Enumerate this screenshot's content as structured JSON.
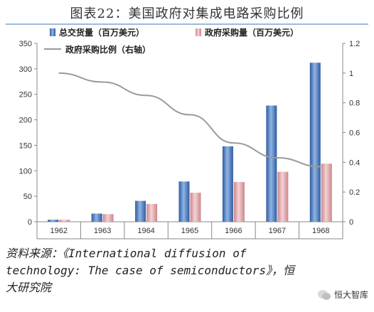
{
  "title": "图表22：美国政府对集成电路采购比例",
  "source_text": "资料来源：《International diffusion of technology: The case of semiconductors》，恒大研究院",
  "watermark": "恒大智库",
  "chart_data": {
    "type": "bar",
    "categories": [
      "1962",
      "1963",
      "1964",
      "1965",
      "1966",
      "1967",
      "1968"
    ],
    "series": [
      {
        "name": "总交货量（百万美元）",
        "axis": "left",
        "kind": "bar",
        "color": "#4f7fc4",
        "values": [
          4,
          16,
          41,
          79,
          148,
          228,
          312
        ]
      },
      {
        "name": "政府采购量（百万美元）",
        "axis": "left",
        "kind": "bar",
        "color": "#e6a8ad",
        "values": [
          4,
          15,
          35,
          57,
          78,
          98,
          114
        ]
      },
      {
        "name": "政府采购比例（右轴）",
        "axis": "right",
        "kind": "line",
        "color": "#9a9a9a",
        "values": [
          1.0,
          0.94,
          0.85,
          0.72,
          0.53,
          0.43,
          0.37
        ]
      }
    ],
    "ylim_left": [
      0,
      350
    ],
    "yticks_left": [
      "0",
      "50",
      "100",
      "150",
      "200",
      "250",
      "300",
      "350"
    ],
    "ylim_right": [
      0,
      1.2
    ],
    "yticks_right": [
      "0",
      "0.2",
      "0.4",
      "0.6",
      "0.8",
      "1",
      "1.2"
    ],
    "legend_position": "top",
    "grid": false
  }
}
